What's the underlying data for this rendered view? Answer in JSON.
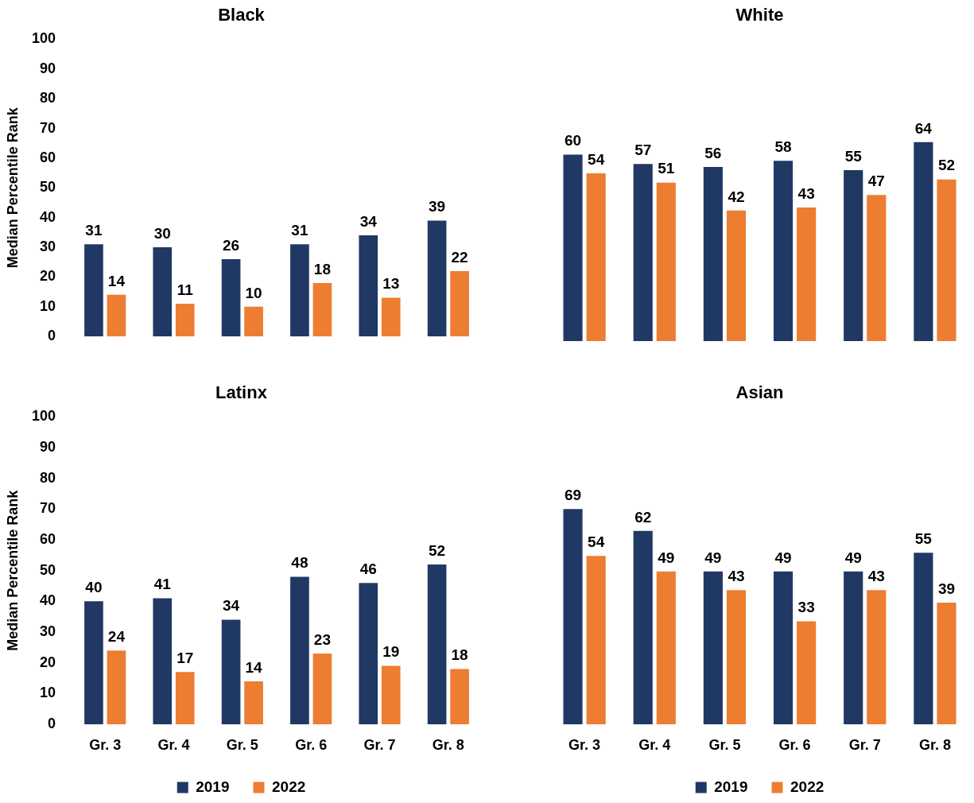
{
  "chart_data": [
    {
      "type": "bar",
      "title": "Black",
      "ylabel": "Median Percentile Rank",
      "categories": [
        null,
        null,
        null,
        null,
        null,
        null
      ],
      "series": [
        {
          "color": "#203864",
          "values": [
            31,
            30,
            26,
            31,
            34,
            39
          ]
        },
        {
          "color": "#ed7d31",
          "values": [
            14,
            11,
            10,
            18,
            13,
            22
          ]
        }
      ],
      "ylim": [
        0,
        100
      ],
      "yticks": [
        0,
        10,
        20,
        30,
        40,
        50,
        60,
        70,
        80,
        90,
        100
      ],
      "data_labels": true,
      "tick_labels": "y"
    },
    {
      "type": "bar",
      "title": "White",
      "categories": [
        null,
        null,
        null,
        null,
        null,
        null
      ],
      "series": [
        {
          "color": "#203864",
          "values": [
            60,
            57,
            56,
            58,
            55,
            64
          ]
        },
        {
          "color": "#ed7d31",
          "values": [
            54,
            51,
            42,
            43,
            47,
            52
          ]
        }
      ],
      "data_labels": true,
      "tick_labels": false
    },
    {
      "type": "bar",
      "title": "Latinx",
      "ylabel": "Median Percentile Rank",
      "categories": [
        "Gr. 3",
        "Gr. 4",
        "Gr. 5",
        "Gr. 6",
        "Gr. 7",
        "Gr. 8"
      ],
      "series": [
        {
          "name": "2019",
          "color": "#203864",
          "values": [
            40,
            41,
            34,
            48,
            46,
            52
          ]
        },
        {
          "name": "2022",
          "color": "#ed7d31",
          "values": [
            24,
            17,
            14,
            23,
            19,
            18
          ]
        }
      ],
      "ylim": [
        0,
        100
      ],
      "yticks": [
        0,
        10,
        20,
        30,
        40,
        50,
        60,
        70,
        80,
        90,
        100
      ],
      "data_labels": true,
      "legend": "bottom"
    },
    {
      "type": "bar",
      "title": "Asian",
      "categories": [
        "Gr. 3",
        "Gr. 4",
        "Gr. 5",
        "Gr. 6",
        "Gr. 7",
        "Gr. 8"
      ],
      "series": [
        {
          "name": "2019",
          "color": "#203864",
          "values": [
            69,
            62,
            49,
            49,
            49,
            55
          ]
        },
        {
          "name": "2022",
          "color": "#ed7d31",
          "values": [
            54,
            49,
            43,
            33,
            43,
            39
          ]
        }
      ],
      "data_labels": true,
      "tick_labels": "x",
      "legend": "bottom"
    }
  ]
}
